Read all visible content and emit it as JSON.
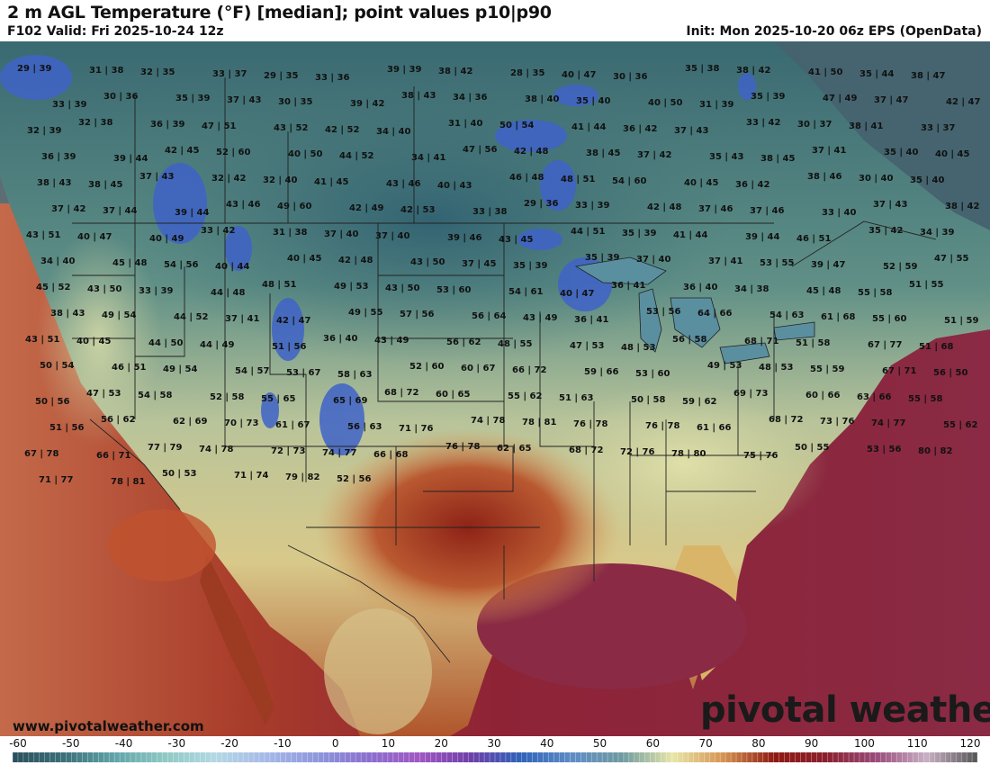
{
  "header": {
    "title": "2 m AGL Temperature (°F) [median]; point values p10|p90",
    "valid": "F102 Valid: Fri 2025-10-24 12z",
    "init": "Init: Mon 2025-10-20 06z EPS (OpenData)"
  },
  "footer": {
    "credit": "www.pivotalweather.com",
    "brand": "pivotal weather"
  },
  "colorbar": {
    "ticks": [
      "-60",
      "-50",
      "-40",
      "-30",
      "-20",
      "-10",
      "0",
      "10",
      "20",
      "30",
      "40",
      "50",
      "60",
      "70",
      "80",
      "90",
      "100",
      "110",
      "120"
    ],
    "stops": [
      "#2a4f5c",
      "#3b6f7a",
      "#5fa3a8",
      "#8fc9c4",
      "#b4d8e4",
      "#a6b8e8",
      "#8e97dc",
      "#8a6fcf",
      "#a157c4",
      "#6f3fa8",
      "#2f62b8",
      "#5f8cc6",
      "#6e9aa0",
      "#e8e6a8",
      "#d59250",
      "#8e1a12",
      "#8a1f2c",
      "#9a4a7a",
      "#c8b0c4",
      "#555555"
    ]
  },
  "colors": {
    "ocean_warm": "#8e2336",
    "land_cool": "#3f6e76",
    "land_mild": "#d8d8a2",
    "land_warm": "#c98a52",
    "land_hot": "#922010",
    "cold_patch": "#3f63c8"
  },
  "point_values": [
    "29|39",
    "31|38",
    "32|35",
    "33|37",
    "29|35",
    "33|36",
    "39|39",
    "38|42",
    "28|35",
    "40|47",
    "30|36",
    "35|38",
    "38|42",
    "41|50",
    "35|44",
    "38|47",
    "33|39",
    "30|36",
    "35|39",
    "37|43",
    "30|35",
    "39|42",
    "38|43",
    "34|36",
    "38|40",
    "35|40",
    "40|50",
    "31|39",
    "35|39",
    "47|49",
    "37|47",
    "42|47",
    "32|39",
    "32|38",
    "36|39",
    "47|51",
    "43|52",
    "42|52",
    "34|40",
    "31|40",
    "50|54",
    "41|44",
    "36|42",
    "37|43",
    "33|42",
    "30|37",
    "38|41",
    "33|37",
    "36|39",
    "39|44",
    "42|45",
    "52|60",
    "40|50",
    "44|52",
    "34|41",
    "47|56",
    "42|48",
    "38|45",
    "37|42",
    "35|43",
    "38|45",
    "37|41",
    "35|40",
    "40|45",
    "38|43",
    "38|45",
    "37|43",
    "32|42",
    "32|40",
    "41|45",
    "43|46",
    "40|43",
    "46|48",
    "48|51",
    "54|60",
    "40|45",
    "36|42",
    "38|46",
    "30|40",
    "35|40",
    "37|42",
    "37|44",
    "39|44",
    "43|46",
    "49|60",
    "42|49",
    "42|53",
    "33|38",
    "29|36",
    "33|39",
    "42|48",
    "37|46",
    "37|46",
    "33|40",
    "37|43",
    "38|42",
    "43|51",
    "40|47",
    "40|49",
    "33|42",
    "31|38",
    "37|40",
    "37|40",
    "39|46",
    "43|45",
    "44|51",
    "35|39",
    "41|44",
    "39|44",
    "46|51",
    "35|42",
    "34|39",
    "34|40",
    "45|48",
    "54|56",
    "40|44",
    "40|45",
    "42|48",
    "43|50",
    "37|45",
    "35|39",
    "35|39",
    "37|40",
    "37|41",
    "53|55",
    "39|47",
    "52|59",
    "47|55",
    "45|52",
    "43|50",
    "33|39",
    "44|48",
    "48|51",
    "49|53",
    "43|50",
    "53|60",
    "54|61",
    "40|47",
    "36|41",
    "36|40",
    "34|38",
    "45|48",
    "55|58",
    "51|55",
    "38|43",
    "49|54",
    "44|52",
    "37|41",
    "42|47",
    "49|55",
    "57|56",
    "56|64",
    "43|49",
    "36|41",
    "53|56",
    "64|66",
    "54|63",
    "61|68",
    "55|60",
    "51|59",
    "43|51",
    "40|45",
    "44|50",
    "44|49",
    "51|56",
    "36|40",
    "43|49",
    "56|62",
    "48|55",
    "47|53",
    "48|53",
    "56|58",
    "68|71",
    "51|58",
    "67|77",
    "51|68",
    "50|54",
    "46|51",
    "49|54",
    "54|57",
    "53|67",
    "58|63",
    "52|60",
    "60|67",
    "66|72",
    "59|66",
    "53|60",
    "49|53",
    "48|53",
    "55|59",
    "67|71",
    "56|50",
    "50|56",
    "47|53",
    "54|58",
    "52|58",
    "55|65",
    "65|69",
    "68|72",
    "60|65",
    "55|62",
    "51|63",
    "50|58",
    "59|62",
    "69|73",
    "60|66",
    "63|66",
    "55|58",
    "51|56",
    "56|62",
    "62|69",
    "70|73",
    "61|67",
    "56|63",
    "71|76",
    "74|78",
    "78|81",
    "76|78",
    "76|78",
    "61|66",
    "68|72",
    "73|76",
    "74|77",
    "55|62",
    "67|78",
    "66|71",
    "77|79",
    "74|78",
    "72|73",
    "74|77",
    "66|68",
    "76|78",
    "62|65",
    "68|72",
    "72|76",
    "78|80",
    "75|76",
    "50|55",
    "53|56",
    "80|82",
    "71|77",
    "78|81",
    "50|53",
    "71|74",
    "79|82",
    "52|56"
  ]
}
